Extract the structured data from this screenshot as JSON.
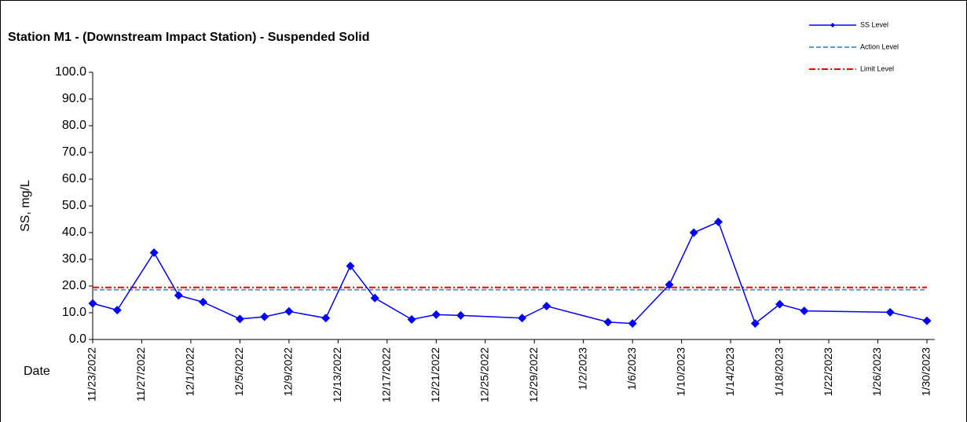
{
  "chart_data": {
    "type": "line",
    "title": "Station M1 - (Downstream Impact Station) - Suspended Solid",
    "y_label": "SS, mg/L",
    "x_label": "Date",
    "x": [
      "11/23/2022",
      "11/25/2022",
      "11/28/2022",
      "11/30/2022",
      "12/2/2022",
      "12/5/2022",
      "12/7/2022",
      "12/9/2022",
      "12/12/2022",
      "12/14/2022",
      "12/16/2022",
      "12/19/2022",
      "12/21/2022",
      "12/23/2022",
      "12/28/2022",
      "12/30/2022",
      "1/4/2023",
      "1/6/2023",
      "1/9/2023",
      "1/11/2023",
      "1/13/2023",
      "1/16/2023",
      "1/18/2023",
      "1/20/2023",
      "1/27/2023",
      "1/30/2023"
    ],
    "series": [
      {
        "name": "SS Level",
        "color": "#0000ff",
        "values": [
          13.5,
          11.0,
          32.5,
          16.5,
          14.0,
          7.7,
          8.5,
          10.5,
          8.0,
          27.5,
          15.5,
          7.5,
          9.3,
          9.0,
          8.0,
          12.5,
          6.5,
          6.0,
          20.5,
          40.0,
          44.0,
          6.0,
          13.2,
          10.7,
          10.2,
          7.0
        ]
      }
    ],
    "reference_lines": [
      {
        "name": "Action Level",
        "value": 18.6,
        "color": "#5b9bd5",
        "style": "dashed"
      },
      {
        "name": "Limit Level",
        "value": 19.5,
        "color": "#ff0000",
        "style": "dashdot"
      }
    ],
    "xlim": [
      "11/23/2022",
      "1/30/2023"
    ],
    "xticks": [
      "11/23/2022",
      "11/27/2022",
      "12/1/2022",
      "12/5/2022",
      "12/9/2022",
      "12/13/2022",
      "12/17/2022",
      "12/21/2022",
      "12/25/2022",
      "12/29/2022",
      "1/2/2023",
      "1/6/2023",
      "1/10/2023",
      "1/14/2023",
      "1/18/2023",
      "1/22/2023",
      "1/26/2023",
      "1/30/2023"
    ],
    "ylim": [
      0,
      100
    ],
    "yticks": [
      {
        "value": 0,
        "label": "0.0"
      },
      {
        "value": 10,
        "label": "10.0"
      },
      {
        "value": 20,
        "label": "20.0"
      },
      {
        "value": 30,
        "label": "30.0"
      },
      {
        "value": 40,
        "label": "40.0"
      },
      {
        "value": 50,
        "label": "50.0"
      },
      {
        "value": 60,
        "label": "60.0"
      },
      {
        "value": 70,
        "label": "70.0"
      },
      {
        "value": 80,
        "label": "80.0"
      },
      {
        "value": 90,
        "label": "90.0"
      },
      {
        "value": 100,
        "label": "100.0"
      }
    ],
    "legend": "top-right"
  }
}
